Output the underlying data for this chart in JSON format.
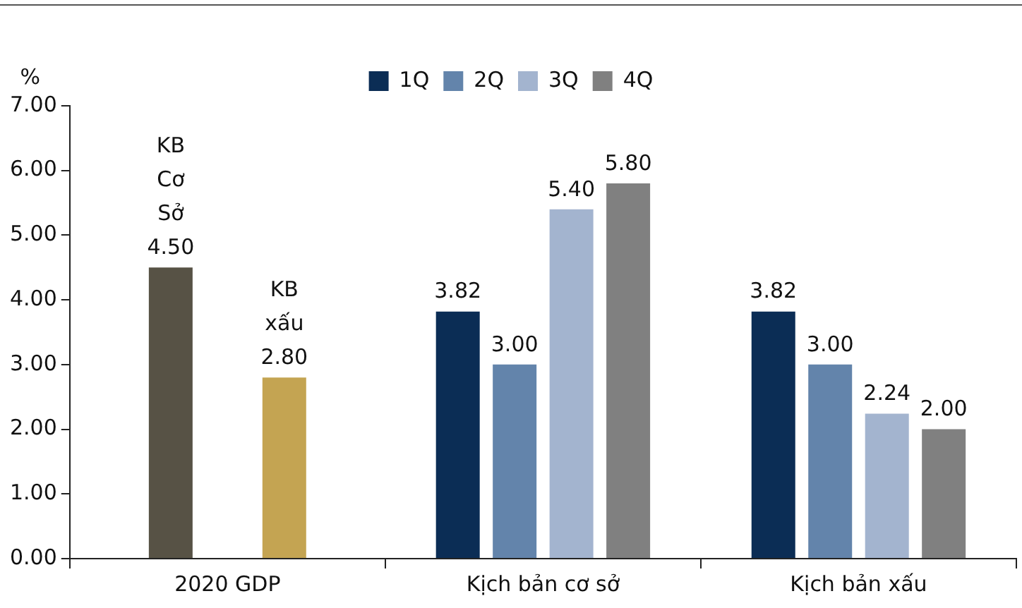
{
  "chart_data": {
    "type": "bar",
    "ylabel": "%",
    "categories": [
      "2020 GDP",
      "Kịch bản cơ sở",
      "Kịch bản xấu"
    ],
    "series": [
      {
        "name": "KB Cơ Sở",
        "color": "#575245",
        "values": [
          4.5,
          null,
          null
        ],
        "value_labels": [
          "4.50",
          null,
          null
        ]
      },
      {
        "name": "KB xấu",
        "color": "#c4a452",
        "values": [
          2.8,
          null,
          null
        ],
        "value_labels": [
          "2.80",
          null,
          null
        ]
      },
      {
        "name": "1Q",
        "color": "#0b2d55",
        "values": [
          null,
          3.82,
          3.82
        ],
        "value_labels": [
          null,
          "3.82",
          "3.82"
        ]
      },
      {
        "name": "2Q",
        "color": "#6384ab",
        "values": [
          null,
          3.0,
          3.0
        ],
        "value_labels": [
          null,
          "3.00",
          "3.00"
        ]
      },
      {
        "name": "3Q",
        "color": "#a3b4cf",
        "values": [
          null,
          5.4,
          2.24
        ],
        "value_labels": [
          null,
          "5.40",
          "2.24"
        ]
      },
      {
        "name": "4Q",
        "color": "#808080",
        "values": [
          null,
          5.8,
          2.0
        ],
        "value_labels": [
          null,
          "5.80",
          "2.00"
        ]
      }
    ],
    "ylim": [
      0,
      7
    ],
    "yticks": [
      {
        "value": 0,
        "label": "0.00"
      },
      {
        "value": 1,
        "label": "1.00"
      },
      {
        "value": 2,
        "label": "2.00"
      },
      {
        "value": 3,
        "label": "3.00"
      },
      {
        "value": 4,
        "label": "4.00"
      },
      {
        "value": 5,
        "label": "5.00"
      },
      {
        "value": 6,
        "label": "6.00"
      },
      {
        "value": 7,
        "label": "7.00"
      }
    ],
    "grid": false,
    "legend": "top"
  }
}
